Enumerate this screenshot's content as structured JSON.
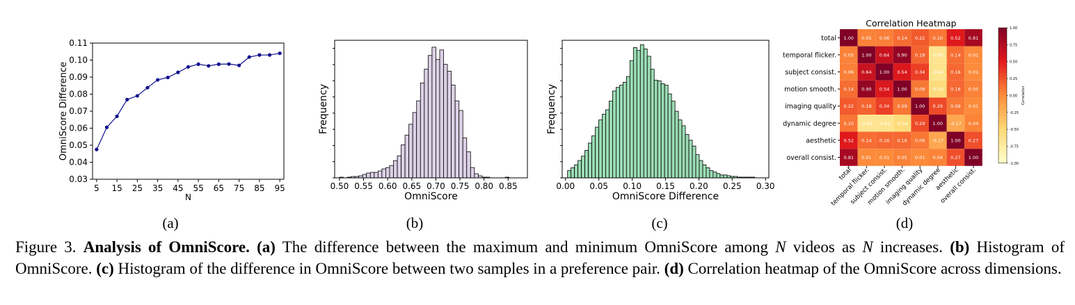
{
  "figure": {
    "panels": [
      {
        "label": "(a)"
      },
      {
        "label": "(b)"
      },
      {
        "label": "(c)"
      },
      {
        "label": "(d)"
      }
    ],
    "caption": {
      "prefix": "Figure 3.",
      "title": "Analysis of OmniScore.",
      "parts": [
        {
          "tag": "(a)",
          "text": " The difference between the maximum and minimum OmniScore among "
        },
        {
          "var": "N"
        },
        {
          "text": " videos as "
        },
        {
          "var": "N"
        },
        {
          "text": " increases. "
        },
        {
          "tag": "(b)",
          "text": " Histogram of OmniScore. "
        },
        {
          "tag": "(c)",
          "text": " Histogram of the difference in OmniScore between two samples in a preference pair. "
        },
        {
          "tag": "(d)",
          "text": " Correlation heatmap of the OmniScore across dimensions."
        }
      ]
    }
  },
  "chart_data": [
    {
      "type": "line",
      "xlabel": "N",
      "ylabel": "OmniScore Difference",
      "xlim": [
        3,
        97
      ],
      "ylim": [
        0.03,
        0.11
      ],
      "xticks": [
        5,
        15,
        25,
        35,
        45,
        55,
        65,
        75,
        85,
        95
      ],
      "xtick_labels": [
        "5",
        "15",
        "25",
        "35",
        "45",
        "55",
        "65",
        "75",
        "85",
        "95"
      ],
      "yticks": [
        0.03,
        0.04,
        0.05,
        0.06,
        0.07,
        0.08,
        0.09,
        0.1,
        0.11
      ],
      "ytick_labels": [
        "0.03",
        "0.04",
        "0.05",
        "0.06",
        "0.07",
        "0.08",
        "0.09",
        "0.10",
        "0.11"
      ],
      "color": "#10108c",
      "x": [
        5,
        10,
        15,
        20,
        25,
        30,
        35,
        40,
        45,
        50,
        55,
        60,
        65,
        70,
        75,
        80,
        85,
        90,
        95
      ],
      "y": [
        0.0475,
        0.0605,
        0.067,
        0.0768,
        0.079,
        0.0838,
        0.0884,
        0.0898,
        0.0928,
        0.096,
        0.0976,
        0.0966,
        0.0976,
        0.0977,
        0.0969,
        0.1018,
        0.103,
        0.103,
        0.104
      ]
    },
    {
      "type": "bar",
      "subtype": "histogram",
      "xlabel": "OmniScore",
      "ylabel": "Frequency",
      "xlim": [
        0.49,
        0.89
      ],
      "xticks": [
        0.5,
        0.55,
        0.6,
        0.65,
        0.7,
        0.75,
        0.8,
        0.85
      ],
      "xtick_labels": [
        "0.50",
        "0.55",
        "0.60",
        "0.65",
        "0.70",
        "0.75",
        "0.80",
        "0.85"
      ],
      "bin_start": 0.5,
      "bin_width": 0.008,
      "ymax": 200,
      "color": "#dcd1e6",
      "counts": [
        1,
        0,
        1,
        2,
        2,
        3,
        5,
        7,
        8,
        8,
        10,
        13,
        15,
        18,
        25,
        32,
        48,
        62,
        78,
        95,
        112,
        138,
        158,
        178,
        190,
        172,
        186,
        165,
        155,
        135,
        112,
        98,
        58,
        38,
        15,
        6,
        3,
        1,
        1,
        0,
        0,
        0,
        0,
        1
      ]
    },
    {
      "type": "bar",
      "subtype": "histogram",
      "xlabel": "OmniScore Difference",
      "ylabel": "Frequency",
      "xlim": [
        -0.005,
        0.305
      ],
      "xticks": [
        0.0,
        0.05,
        0.1,
        0.15,
        0.2,
        0.25,
        0.3
      ],
      "xtick_labels": [
        "0.00",
        "0.05",
        "0.10",
        "0.15",
        "0.20",
        "0.25",
        "0.30"
      ],
      "bin_start": 0.003,
      "bin_width": 0.0052,
      "ymax": 190,
      "color": "#9bdcb4",
      "counts": [
        10,
        14,
        18,
        24,
        30,
        38,
        48,
        58,
        70,
        80,
        88,
        94,
        106,
        120,
        125,
        128,
        132,
        140,
        162,
        180,
        176,
        184,
        178,
        168,
        150,
        135,
        134,
        130,
        128,
        116,
        106,
        92,
        80,
        72,
        60,
        52,
        44,
        32,
        24,
        18,
        14,
        10,
        8,
        6,
        4,
        4,
        3,
        2,
        2,
        1,
        1,
        1,
        1,
        1,
        0
      ]
    },
    {
      "type": "heatmap",
      "title": "Correlation Heatmap",
      "labels": [
        "total",
        "temporal flicker.",
        "subject consist.",
        "motion smooth.",
        "imaging quality",
        "dynamic degree",
        "aesthetic",
        "overall consist."
      ],
      "values": [
        [
          1.0,
          0.05,
          0.06,
          0.14,
          0.22,
          0.1,
          0.52,
          0.81
        ],
        [
          0.05,
          1.0,
          0.64,
          0.9,
          0.18,
          -0.65,
          0.14,
          0.01
        ],
        [
          0.06,
          0.64,
          1.0,
          0.54,
          0.34,
          -0.64,
          0.16,
          0.01
        ],
        [
          0.14,
          0.9,
          0.54,
          1.0,
          0.09,
          -0.54,
          0.16,
          0.05
        ],
        [
          0.22,
          0.18,
          0.34,
          0.09,
          1.0,
          0.29,
          0.09,
          0.01
        ],
        [
          0.1,
          -0.65,
          -0.64,
          -0.54,
          0.29,
          1.0,
          -0.17,
          0.04
        ],
        [
          0.52,
          0.14,
          0.16,
          0.16,
          0.09,
          -0.17,
          1.0,
          0.27
        ],
        [
          0.81,
          0.01,
          0.01,
          0.05,
          0.01,
          0.04,
          0.27,
          1.0
        ]
      ],
      "colorbar": {
        "label": "Correlation",
        "range": [
          -1.0,
          1.0
        ],
        "ticks": [
          "1.00",
          "0.75",
          "0.50",
          "0.25",
          "0.00",
          "-0.25",
          "-0.50",
          "-0.75",
          "-1.00"
        ]
      },
      "colormap_stops": [
        "#ffffcc",
        "#fed976",
        "#fd8d3c",
        "#e31a1c",
        "#800026"
      ]
    }
  ]
}
